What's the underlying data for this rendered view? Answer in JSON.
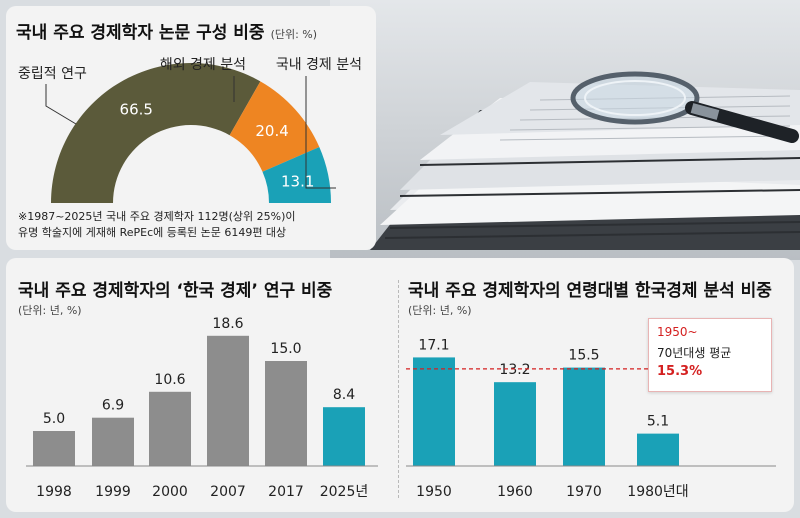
{
  "donut": {
    "title": "국내 주요 경제학자 논문 구성 비중",
    "unit": "(단위: %)",
    "note_line1": "※1987~2025년 국내 주요 경제학자 112명(상위 25%)이",
    "note_line2": "유명 학술지에 게재해 RePEc에 등록된 논문 6149편 대상"
  },
  "bar1": {
    "title": "국내 주요 경제학자의 ‘한국 경제’ 연구 비중",
    "unit": "(단위: 년, %)"
  },
  "bar2": {
    "title": "국내 주요 경제학자의 연령대별 한국경제 분석 비중",
    "unit": "(단위: 년, %)",
    "callout_line1": "1950~",
    "callout_line2": "70년대생 평균",
    "callout_value": "15.3%"
  },
  "chart_data": [
    {
      "type": "pie",
      "title": "국내 주요 경제학자 논문 구성 비중",
      "labels": [
        "중립적 연구",
        "해외 경제 분석",
        "국내 경제 분석"
      ],
      "values": [
        66.5,
        20.4,
        13.1
      ],
      "colors": [
        "#5b5a3a",
        "#ee8522",
        "#1aa1b7"
      ]
    },
    {
      "type": "bar",
      "title": "국내 주요 경제학자의 ‘한국 경제’ 연구 비중",
      "categories": [
        "1998",
        "1999",
        "2000",
        "2007",
        "2017",
        "2025년"
      ],
      "values": [
        5.0,
        6.9,
        10.6,
        18.6,
        15.0,
        8.4
      ],
      "value_labels": [
        "5.0",
        "6.9",
        "10.6",
        "18.6",
        "15.0",
        "8.4"
      ],
      "colors": [
        "#8d8d8d",
        "#8d8d8d",
        "#8d8d8d",
        "#8d8d8d",
        "#8d8d8d",
        "#1aa1b7"
      ],
      "ylim": [
        0,
        20
      ]
    },
    {
      "type": "bar",
      "title": "국내 주요 경제학자의 연령대별 한국경제 분석 비중",
      "categories": [
        "1950",
        "1960",
        "1970",
        "1980년대"
      ],
      "values": [
        17.1,
        13.2,
        15.5,
        5.1
      ],
      "value_labels": [
        "17.1",
        "13.2",
        "15.5",
        "5.1"
      ],
      "color": "#1aa1b7",
      "reference_line": 15.3,
      "ylim": [
        0,
        20
      ]
    }
  ]
}
